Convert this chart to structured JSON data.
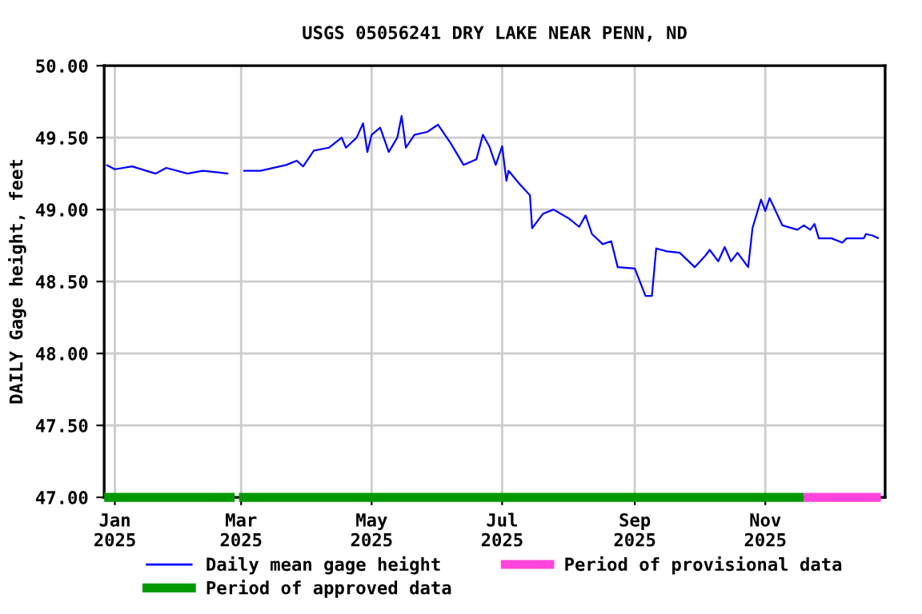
{
  "chart_data": {
    "type": "line",
    "title": "USGS 05056241 DRY LAKE NEAR PENN, ND",
    "ylabel": "DAILY Gage height, feet",
    "series": [
      {
        "name": "Daily mean gage height",
        "color": "#0000ff",
        "x": [
          "2024-12-28",
          "2025-01-01",
          "2025-01-09",
          "2025-01-20",
          "2025-01-25",
          "2025-02-04",
          "2025-02-11",
          "2025-02-23",
          "2025-02-27",
          "2025-03-02",
          "2025-03-10",
          "2025-03-22",
          "2025-03-27",
          "2025-03-30",
          "2025-04-04",
          "2025-04-11",
          "2025-04-17",
          "2025-04-19",
          "2025-04-24",
          "2025-04-27",
          "2025-04-29",
          "2025-05-01",
          "2025-05-05",
          "2025-05-09",
          "2025-05-13",
          "2025-05-15",
          "2025-05-17",
          "2025-05-21",
          "2025-05-27",
          "2025-06-01",
          "2025-06-07",
          "2025-06-13",
          "2025-06-19",
          "2025-06-22",
          "2025-06-25",
          "2025-06-28",
          "2025-07-01",
          "2025-07-03",
          "2025-07-04",
          "2025-07-09",
          "2025-07-14",
          "2025-07-15",
          "2025-07-20",
          "2025-07-25",
          "2025-08-01",
          "2025-08-06",
          "2025-08-09",
          "2025-08-12",
          "2025-08-17",
          "2025-08-21",
          "2025-08-24",
          "2025-09-01",
          "2025-09-06",
          "2025-09-09",
          "2025-09-11",
          "2025-09-16",
          "2025-09-22",
          "2025-09-29",
          "2025-10-04",
          "2025-10-06",
          "2025-10-10",
          "2025-10-13",
          "2025-10-16",
          "2025-10-19",
          "2025-10-24",
          "2025-10-26",
          "2025-10-30",
          "2025-11-01",
          "2025-11-03",
          "2025-11-09",
          "2025-11-16",
          "2025-11-19",
          "2025-11-22",
          "2025-11-24",
          "2025-11-26",
          "2025-12-02",
          "2025-12-07",
          "2025-12-09",
          "2025-12-17",
          "2025-12-18",
          "2025-12-21",
          "2025-12-24"
        ],
        "values": [
          49.31,
          49.28,
          49.3,
          49.25,
          49.29,
          49.25,
          49.27,
          49.25,
          null,
          49.27,
          49.27,
          49.31,
          49.34,
          49.3,
          49.41,
          49.43,
          49.5,
          49.43,
          49.5,
          49.6,
          49.4,
          49.52,
          49.57,
          49.4,
          49.5,
          49.65,
          49.43,
          49.52,
          49.54,
          49.59,
          49.46,
          49.31,
          49.35,
          49.52,
          49.44,
          49.31,
          49.44,
          49.2,
          49.27,
          49.18,
          49.1,
          48.87,
          48.97,
          49.0,
          48.94,
          48.88,
          48.96,
          48.83,
          48.76,
          48.78,
          48.6,
          48.59,
          48.4,
          48.4,
          48.73,
          48.71,
          48.7,
          48.6,
          48.68,
          48.72,
          48.64,
          48.74,
          48.64,
          48.7,
          48.6,
          48.87,
          49.07,
          48.99,
          49.08,
          48.89,
          48.86,
          48.89,
          48.86,
          48.9,
          48.8,
          48.8,
          48.77,
          48.8,
          48.8,
          48.83,
          48.82,
          48.8
        ]
      },
      {
        "name": "Period of approved data",
        "color": "#009900",
        "x": [
          "2024-12-27",
          "2025-02-26",
          "2025-02-27",
          "2025-02-28",
          "2025-11-19"
        ],
        "values": [
          47.0,
          47.0,
          null,
          47.0,
          47.0
        ]
      },
      {
        "name": "Period of provisional data",
        "color": "#ff44dd",
        "x": [
          "2025-11-19",
          "2025-12-25"
        ],
        "values": [
          47.0,
          47.0
        ]
      }
    ],
    "xlim": [
      "2024-12-27",
      "2025-12-27"
    ],
    "xticks": [
      {
        "value": "2025-01-01",
        "label": "Jan\n2025"
      },
      {
        "value": "2025-03-01",
        "label": "Mar\n2025"
      },
      {
        "value": "2025-05-01",
        "label": "May\n2025"
      },
      {
        "value": "2025-07-01",
        "label": "Jul\n2025"
      },
      {
        "value": "2025-09-01",
        "label": "Sep\n2025"
      },
      {
        "value": "2025-11-01",
        "label": "Nov\n2025"
      }
    ],
    "ylim": [
      47.0,
      50.0
    ],
    "yticks": [
      {
        "value": 47.0,
        "label": "47.00"
      },
      {
        "value": 47.5,
        "label": "47.50"
      },
      {
        "value": 48.0,
        "label": "48.00"
      },
      {
        "value": 48.5,
        "label": "48.50"
      },
      {
        "value": 49.0,
        "label": "49.00"
      },
      {
        "value": 49.5,
        "label": "49.50"
      },
      {
        "value": 50.0,
        "label": "50.00"
      }
    ],
    "grid": true,
    "legend": "bottom"
  }
}
